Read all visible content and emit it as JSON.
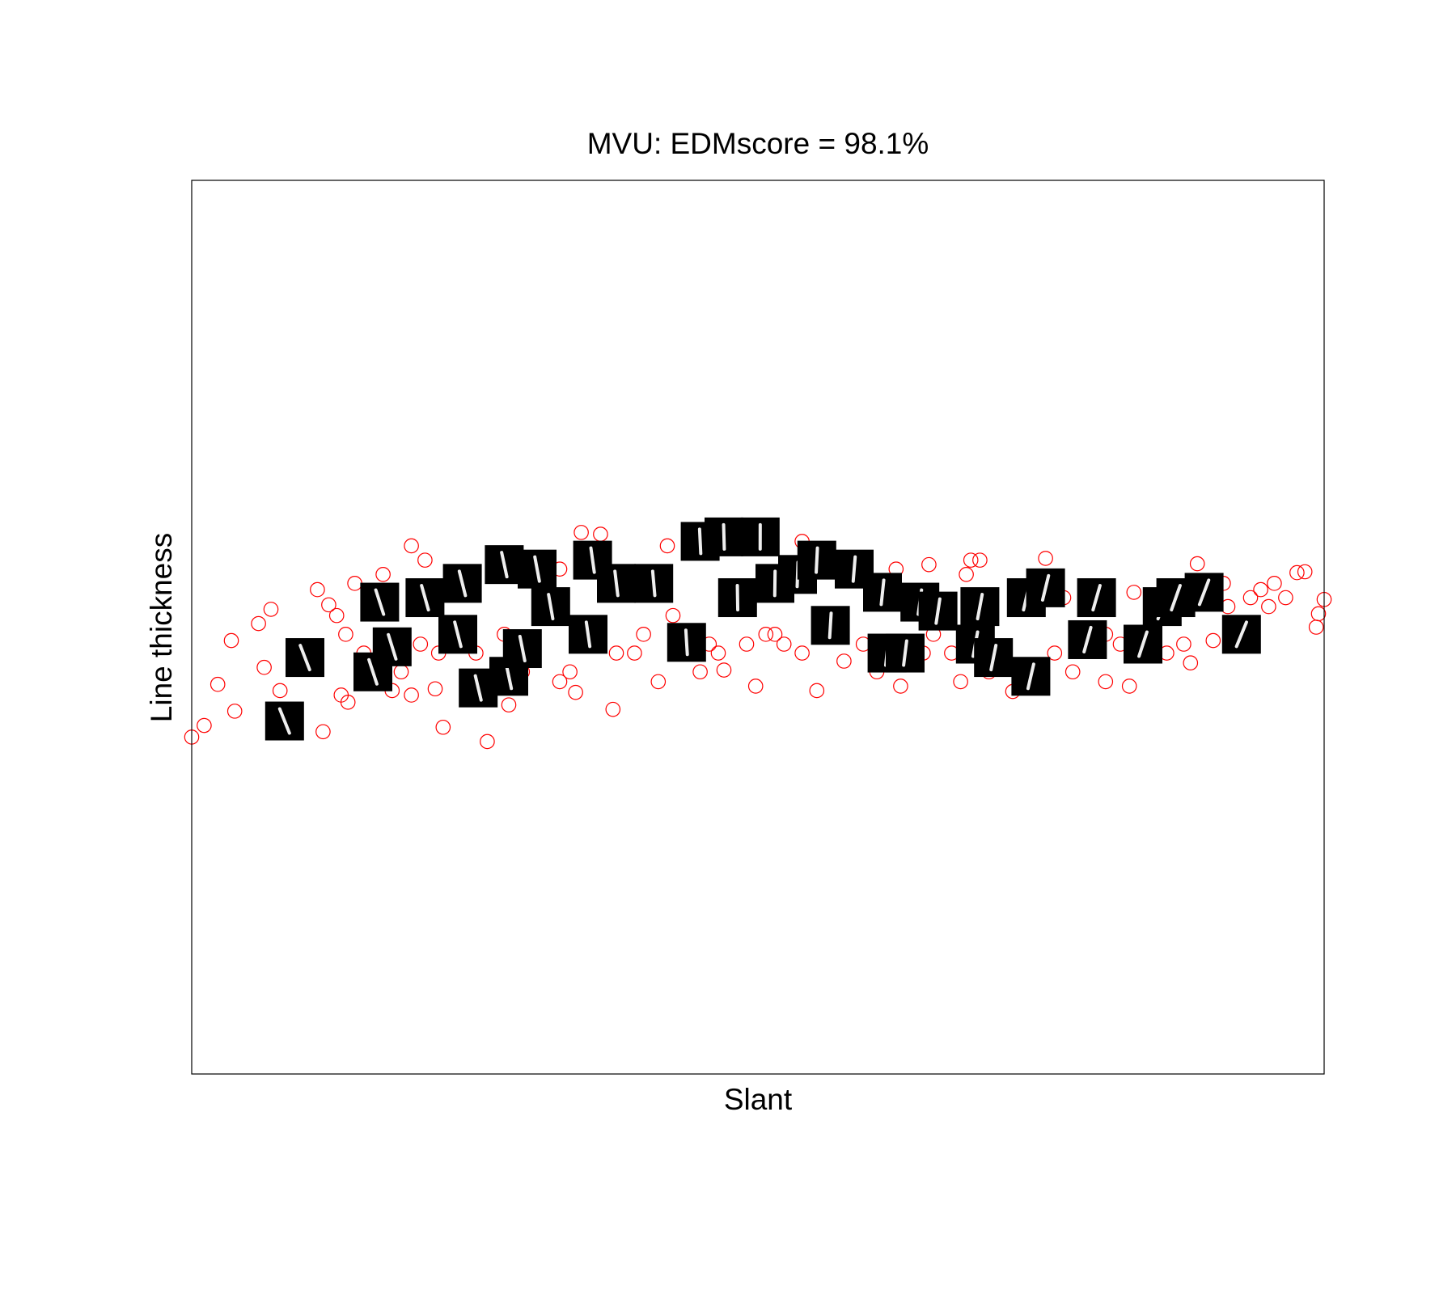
{
  "chart_data": {
    "type": "scatter",
    "title": "MVU: EDMscore = 98.1%",
    "x_label": "Slant",
    "y_label": "Line thickness",
    "xlim": [
      0,
      100
    ],
    "ylim": [
      0,
      100
    ],
    "color": "#ff0000",
    "points": {
      "x": [
        0,
        1.1,
        2.3,
        3.5,
        3.8,
        5.9,
        6.4,
        7.0,
        11.6,
        11.1,
        12.1,
        13.2,
        13.8,
        14.4,
        16.9,
        19.4,
        19.4,
        22.2,
        21.5,
        20.6,
        26.1,
        28.0,
        32.5,
        33.9,
        34.4,
        36.1,
        37.2,
        39.1,
        41.2,
        42.0,
        44.9,
        47.0,
        49.0,
        49.8,
        50.7,
        53.9,
        55.2,
        53.9,
        57.6,
        60.5,
        62.2,
        62.6,
        65.1,
        65.5,
        68.4,
        69.6,
        67.9,
        72.5,
        75.4,
        77.0,
        80.7,
        82.8,
        83.2,
        80.7,
        88.2,
        88.8,
        90.2,
        91.1,
        93.5,
        95.1,
        95.6,
        97.6,
        98.3,
        99.3,
        99.5,
        100,
        96.6,
        94.4,
        91.5,
        87.6,
        86.1,
        82.0,
        77.8,
        76.2,
        72.9,
        70.4,
        68.8,
        67.1,
        64.6,
        59.3,
        57.3,
        56.0,
        52.3,
        51.5,
        46.5,
        45.7,
        42.5,
        39.9,
        37.5,
        33.4,
        32.5,
        30.9,
        29.2,
        27.6,
        25.1,
        21.8,
        20.2,
        18.5,
        17.7,
        15.2,
        13.6,
        12.8,
        7.8
      ],
      "y": [
        37.7,
        39.0,
        43.6,
        48.5,
        40.6,
        50.4,
        45.5,
        52.0,
        38.3,
        54.2,
        52.5,
        42.4,
        41.6,
        54.9,
        55.9,
        59.1,
        42.4,
        38.8,
        43.1,
        57.5,
        37.2,
        41.3,
        43.9,
        42.7,
        60.6,
        60.4,
        40.8,
        47.1,
        43.9,
        59.1,
        45.0,
        45.2,
        48.1,
        43.4,
        49.2,
        59.6,
        42.9,
        47.1,
        46.2,
        45.0,
        56.5,
        43.4,
        57.0,
        49.2,
        55.9,
        57.5,
        43.9,
        42.8,
        57.7,
        53.3,
        43.9,
        43.4,
        53.9,
        49.2,
        46.0,
        57.1,
        48.5,
        54.9,
        53.3,
        52.3,
        54.9,
        56.1,
        56.2,
        50.0,
        51.5,
        53.1,
        53.3,
        54.2,
        52.3,
        48.1,
        47.1,
        48.1,
        45.0,
        47.1,
        45.0,
        45.0,
        57.5,
        47.1,
        47.1,
        48.1,
        49.2,
        51.3,
        48.1,
        49.2,
        47.1,
        48.1,
        51.3,
        49.2,
        47.1,
        45.0,
        56.5,
        57.5,
        45.0,
        49.2,
        47.1,
        47.1,
        48.1,
        45.0,
        42.9,
        47.1,
        49.2,
        51.3,
        42.9
      ]
    },
    "thumbnails": {
      "x": [
        8.2,
        10.0,
        16.0,
        16.6,
        17.7,
        20.6,
        23.5,
        23.9,
        25.3,
        27.6,
        28.0,
        29.2,
        30.5,
        31.7,
        35.0,
        35.4,
        37.5,
        40.8,
        43.7,
        44.9,
        47.0,
        50.2,
        48.2,
        51.5,
        53.5,
        55.2,
        56.4,
        58.5,
        61.0,
        61.4,
        64.3,
        63.0,
        65.9,
        69.2,
        69.6,
        70.8,
        73.7,
        74.1,
        75.4,
        79.1,
        79.9,
        84.0,
        85.7,
        86.9,
        89.4,
        92.7
      ],
      "y": [
        39.5,
        46.6,
        45.0,
        52.8,
        47.8,
        53.3,
        49.2,
        54.9,
        43.2,
        57.0,
        44.5,
        47.6,
        56.5,
        52.3,
        49.2,
        57.5,
        54.9,
        54.9,
        48.3,
        59.6,
        60.1,
        60.1,
        53.3,
        54.9,
        55.9,
        57.5,
        50.2,
        56.5,
        53.9,
        47.1,
        52.8,
        47.1,
        51.8,
        48.1,
        52.3,
        46.6,
        53.3,
        44.5,
        54.4,
        48.6,
        53.3,
        48.1,
        52.3,
        53.3,
        53.9,
        49.2
      ]
    }
  }
}
